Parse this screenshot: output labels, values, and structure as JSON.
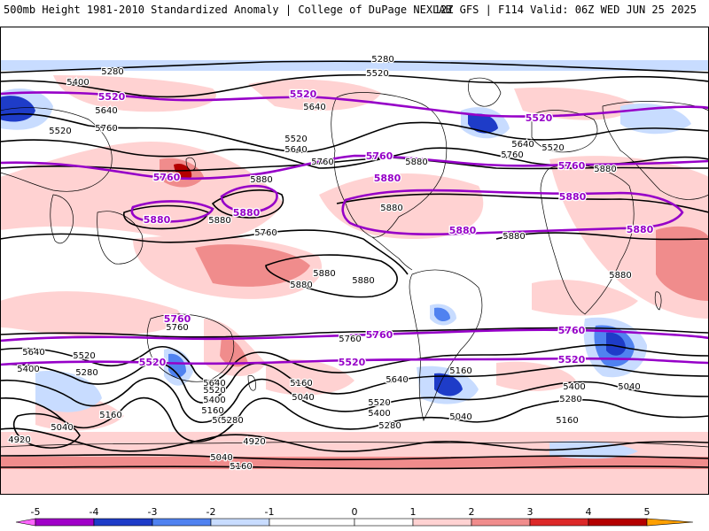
{
  "header": {
    "title": "500mb Height 1981-2010 Standardized Anomaly | College of DuPage NEXLAB",
    "model": "12Z GFS | F114 Valid: 06Z WED JUN 25 2025"
  },
  "colors": {
    "neg5": "#ff66ff",
    "neg4": "#a000c8",
    "neg3": "#1e3cc8",
    "neg2": "#5082f0",
    "neg1": "#c8dcff",
    "pos1": "#ffd2d2",
    "pos2": "#f08c8c",
    "pos3": "#dc2828",
    "pos4": "#b40000",
    "pos5": "#ffa000",
    "contour": "#000000",
    "key_contour": "#9600c8",
    "coast": "#000000"
  },
  "colorbar": {
    "ticks": [
      "-5",
      "-4",
      "-3",
      "-2",
      "-1",
      "0",
      "1",
      "2",
      "3",
      "4",
      "5"
    ]
  },
  "contour_labels": {
    "black": [
      "5280",
      "5400",
      "5520",
      "5640",
      "5760",
      "5880",
      "5040",
      "5160",
      "4920",
      "5280",
      "5400",
      "5520",
      "5640",
      "5760",
      "5880",
      "5040",
      "5160",
      "5280",
      "5400",
      "5520",
      "5640",
      "5760",
      "5880",
      "5880",
      "5880",
      "5880",
      "5880",
      "5880",
      "5280",
      "5520",
      "5520",
      "5640",
      "5640",
      "5760",
      "5760",
      "5880",
      "5880",
      "5640",
      "5520",
      "5400",
      "5280",
      "5160",
      "5040",
      "5160",
      "5040",
      "5400",
      "5520",
      "5640",
      "5760",
      "5160",
      "5040",
      "4920",
      "5040",
      "5160",
      "5280"
    ],
    "purple": [
      "5520",
      "5520",
      "5520",
      "5760",
      "5760",
      "5760",
      "5880",
      "5880",
      "5880",
      "5880",
      "5880",
      "5880",
      "5760",
      "5760",
      "5760",
      "5520",
      "5520",
      "5520"
    ]
  }
}
